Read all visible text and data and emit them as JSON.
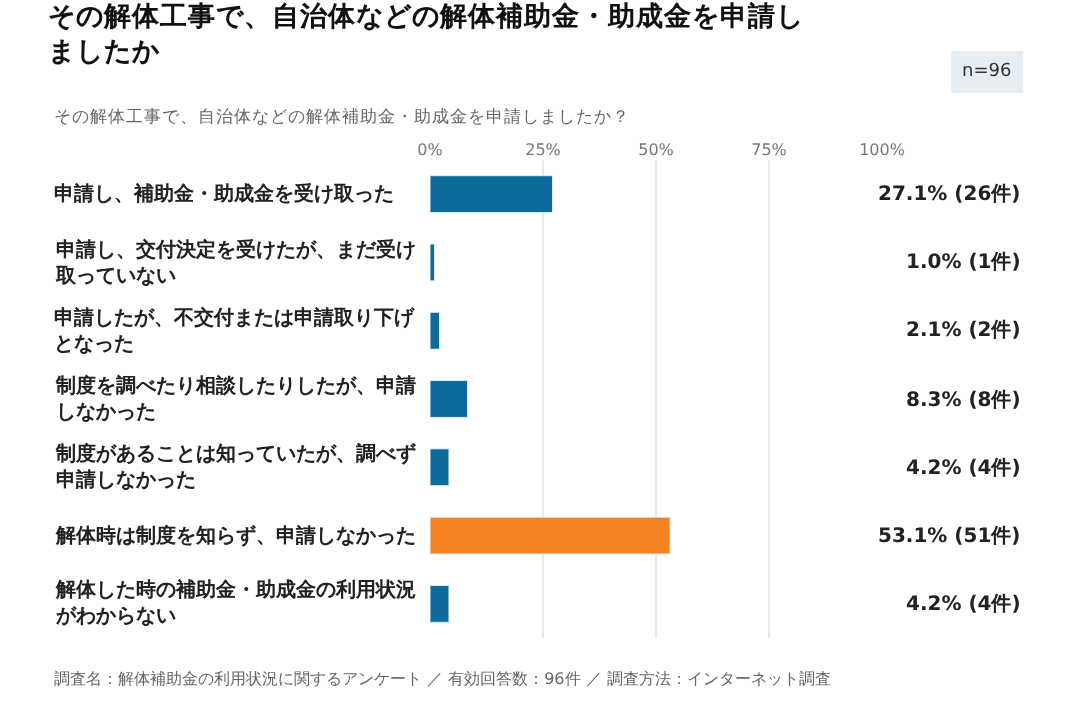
{
  "chart_data": {
    "type": "bar",
    "orientation": "horizontal",
    "title": "その解体工事で、自治体などの解体補助金・助成金を申請しましたか",
    "subtitle": "その解体工事で、自治体などの解体補助金・助成金を申請しましたか？",
    "categories": [
      "申請し、補助金・助成金を受け取った",
      "申請し、交付決定を受けたが、まだ受け取っていない",
      "申請したが、不交付または申請取り下げとなった",
      "制度を調べたり相談したりしたが、申請しなかった",
      "制度があることは知っていたが、調べず申請しなかった",
      "解体時は制度を知らず、申請しなかった",
      "解体した時の補助金・助成金の利用状況がわからない"
    ],
    "values": [
      27.1,
      1.0,
      2.1,
      8.3,
      4.2,
      53.1,
      4.2
    ],
    "colors": [
      "#0b6c9c",
      "#0b6c9c",
      "#0b6c9c",
      "#0b6c9c",
      "#0b6c9c",
      "#f58220",
      "#0b6c9c"
    ],
    "value_labels": [
      "27.1% (26件)",
      "1.0% (1件)",
      "2.1% (2件)",
      "8.3% (8件)",
      "4.2% (4件)",
      "53.1% (51件)",
      "4.2% (4件)"
    ],
    "xlim": [
      0,
      100
    ],
    "xticks": [
      {
        "value": 0,
        "label": "0%"
      },
      {
        "value": 25,
        "label": "25%"
      },
      {
        "value": 50,
        "label": "50%"
      },
      {
        "value": 75,
        "label": "75%"
      },
      {
        "value": 100,
        "label": "100%"
      }
    ],
    "grid": "x",
    "legend": false,
    "annotations": [
      "n=96",
      "調査名：解体補助金の利用状況に関するアンケート ／ 有効回答数：96件 ／ 調査方法：インターネット調査"
    ]
  }
}
